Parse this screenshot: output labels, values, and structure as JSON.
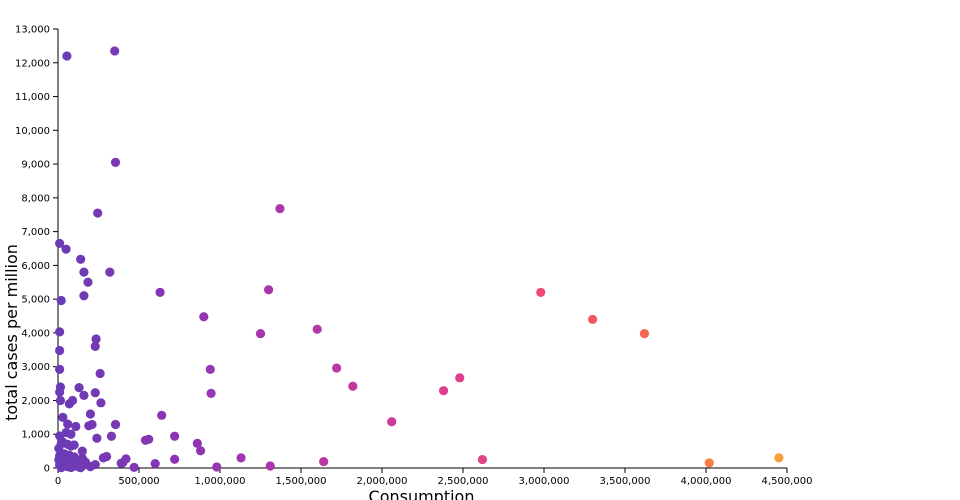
{
  "chart_data": {
    "type": "scatter",
    "xlabel": "Consumption",
    "ylabel": "total cases per million",
    "xlim": [
      0,
      4500000
    ],
    "ylim": [
      0,
      13000
    ],
    "grid": false,
    "x_ticks": [
      "0",
      "500,000",
      "1,000,000",
      "1,500,000",
      "2,000,000",
      "2,500,000",
      "3,000,000",
      "3,500,000",
      "4,000,000",
      "4,500,000"
    ],
    "y_ticks": [
      "0",
      "1,000",
      "2,000",
      "3,000",
      "4,000",
      "5,000",
      "6,000",
      "7,000",
      "8,000",
      "9,000",
      "10,000",
      "11,000",
      "12,000",
      "13,000"
    ],
    "color_scale": [
      "#6a3bb5",
      "#8c35b5",
      "#b337a8",
      "#d43c95",
      "#ee4a74",
      "#f86a4c",
      "#f7a034"
    ],
    "points": [
      [
        55000,
        12200
      ],
      [
        350000,
        12350
      ],
      [
        355000,
        9050
      ],
      [
        245000,
        7550
      ],
      [
        1370000,
        7680
      ],
      [
        10000,
        6650
      ],
      [
        50000,
        6480
      ],
      [
        140000,
        6180
      ],
      [
        160000,
        5800
      ],
      [
        320000,
        5800
      ],
      [
        185000,
        5500
      ],
      [
        630000,
        5200
      ],
      [
        1300000,
        5280
      ],
      [
        160000,
        5100
      ],
      [
        20000,
        4960
      ],
      [
        2980000,
        5200
      ],
      [
        900000,
        4480
      ],
      [
        3300000,
        4400
      ],
      [
        3620000,
        3980
      ],
      [
        10000,
        4030
      ],
      [
        1250000,
        3980
      ],
      [
        1600000,
        4110
      ],
      [
        235000,
        3820
      ],
      [
        230000,
        3600
      ],
      [
        10000,
        3480
      ],
      [
        1720000,
        2960
      ],
      [
        940000,
        2920
      ],
      [
        10000,
        2920
      ],
      [
        2480000,
        2670
      ],
      [
        260000,
        2800
      ],
      [
        15000,
        2400
      ],
      [
        130000,
        2380
      ],
      [
        1820000,
        2420
      ],
      [
        2380000,
        2290
      ],
      [
        945000,
        2210
      ],
      [
        160000,
        2150
      ],
      [
        230000,
        2230
      ],
      [
        10000,
        2250
      ],
      [
        15000,
        2000
      ],
      [
        90000,
        2000
      ],
      [
        70000,
        1900
      ],
      [
        265000,
        1930
      ],
      [
        200000,
        1600
      ],
      [
        640000,
        1560
      ],
      [
        30000,
        1500
      ],
      [
        2060000,
        1370
      ],
      [
        60000,
        1300
      ],
      [
        110000,
        1230
      ],
      [
        210000,
        1290
      ],
      [
        190000,
        1250
      ],
      [
        355000,
        1290
      ],
      [
        10000,
        950
      ],
      [
        50000,
        1050
      ],
      [
        80000,
        1000
      ],
      [
        240000,
        880
      ],
      [
        330000,
        940
      ],
      [
        560000,
        850
      ],
      [
        720000,
        940
      ],
      [
        860000,
        730
      ],
      [
        540000,
        820
      ],
      [
        880000,
        510
      ],
      [
        5000,
        580
      ],
      [
        20000,
        720
      ],
      [
        30000,
        770
      ],
      [
        60000,
        700
      ],
      [
        100000,
        680
      ],
      [
        150000,
        500
      ],
      [
        80000,
        650
      ],
      [
        10000,
        360
      ],
      [
        40000,
        420
      ],
      [
        70000,
        380
      ],
      [
        100000,
        330
      ],
      [
        150000,
        290
      ],
      [
        300000,
        340
      ],
      [
        280000,
        300
      ],
      [
        420000,
        270
      ],
      [
        720000,
        260
      ],
      [
        1130000,
        300
      ],
      [
        5000,
        240
      ],
      [
        20000,
        180
      ],
      [
        50000,
        200
      ],
      [
        90000,
        150
      ],
      [
        130000,
        110
      ],
      [
        170000,
        170
      ],
      [
        230000,
        100
      ],
      [
        390000,
        140
      ],
      [
        600000,
        130
      ],
      [
        400000,
        160
      ],
      [
        1640000,
        190
      ],
      [
        2620000,
        250
      ],
      [
        4020000,
        150
      ],
      [
        4450000,
        300
      ],
      [
        10000,
        80
      ],
      [
        30000,
        50
      ],
      [
        60000,
        40
      ],
      [
        100000,
        60
      ],
      [
        130000,
        30
      ],
      [
        160000,
        90
      ],
      [
        200000,
        40
      ],
      [
        470000,
        20
      ],
      [
        980000,
        30
      ],
      [
        1310000,
        60
      ],
      [
        20000,
        10
      ],
      [
        80000,
        15
      ],
      [
        140000,
        10
      ]
    ]
  }
}
